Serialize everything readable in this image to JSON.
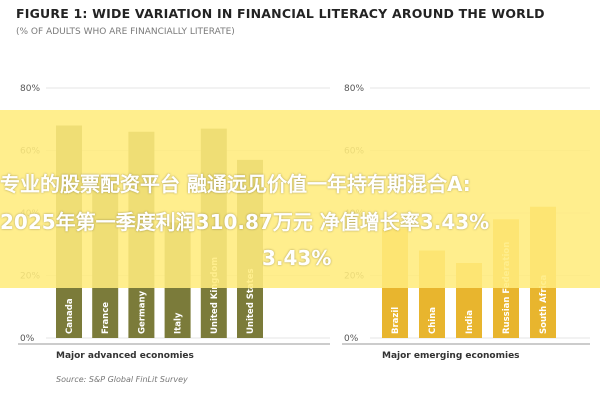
{
  "header": {
    "title": "FIGURE 1: WIDE VARIATION IN FINANCIAL LITERACY AROUND THE WORLD",
    "subtitle": "(% OF ADULTS WHO ARE FINANCIALLY LITERATE)"
  },
  "overlay": {
    "line1": "专业的股票配资平台 融通远见价值一年持有期混合A:",
    "line2": "2025年第一季度利润310.87万元 净值增长率3.43%",
    "line3": "3.43%"
  },
  "colors": {
    "advanced": "#7b7b3a",
    "emerging": "#e8b52e",
    "overlay": "#fff07d"
  },
  "chart_data": [
    {
      "type": "bar",
      "group_label": "Major advanced economies",
      "categories": [
        "Canada",
        "France",
        "Germany",
        "Italy",
        "United Kingdom",
        "United States"
      ],
      "values": [
        68,
        52,
        66,
        37,
        67,
        57
      ],
      "y_ticks": [
        "80%",
        "60%",
        "40%",
        "20%",
        "0%"
      ],
      "ylim": [
        0,
        80
      ],
      "source": "Source: S&P Global FinLit Survey"
    },
    {
      "type": "bar",
      "group_label": "Major emerging economies",
      "categories": [
        "Brazil",
        "China",
        "India",
        "Russian Federation",
        "South Africa"
      ],
      "values": [
        35,
        28,
        24,
        38,
        42
      ],
      "y_ticks": [
        "80%",
        "60%",
        "40%",
        "20%",
        "0%"
      ],
      "ylim": [
        0,
        80
      ]
    }
  ]
}
